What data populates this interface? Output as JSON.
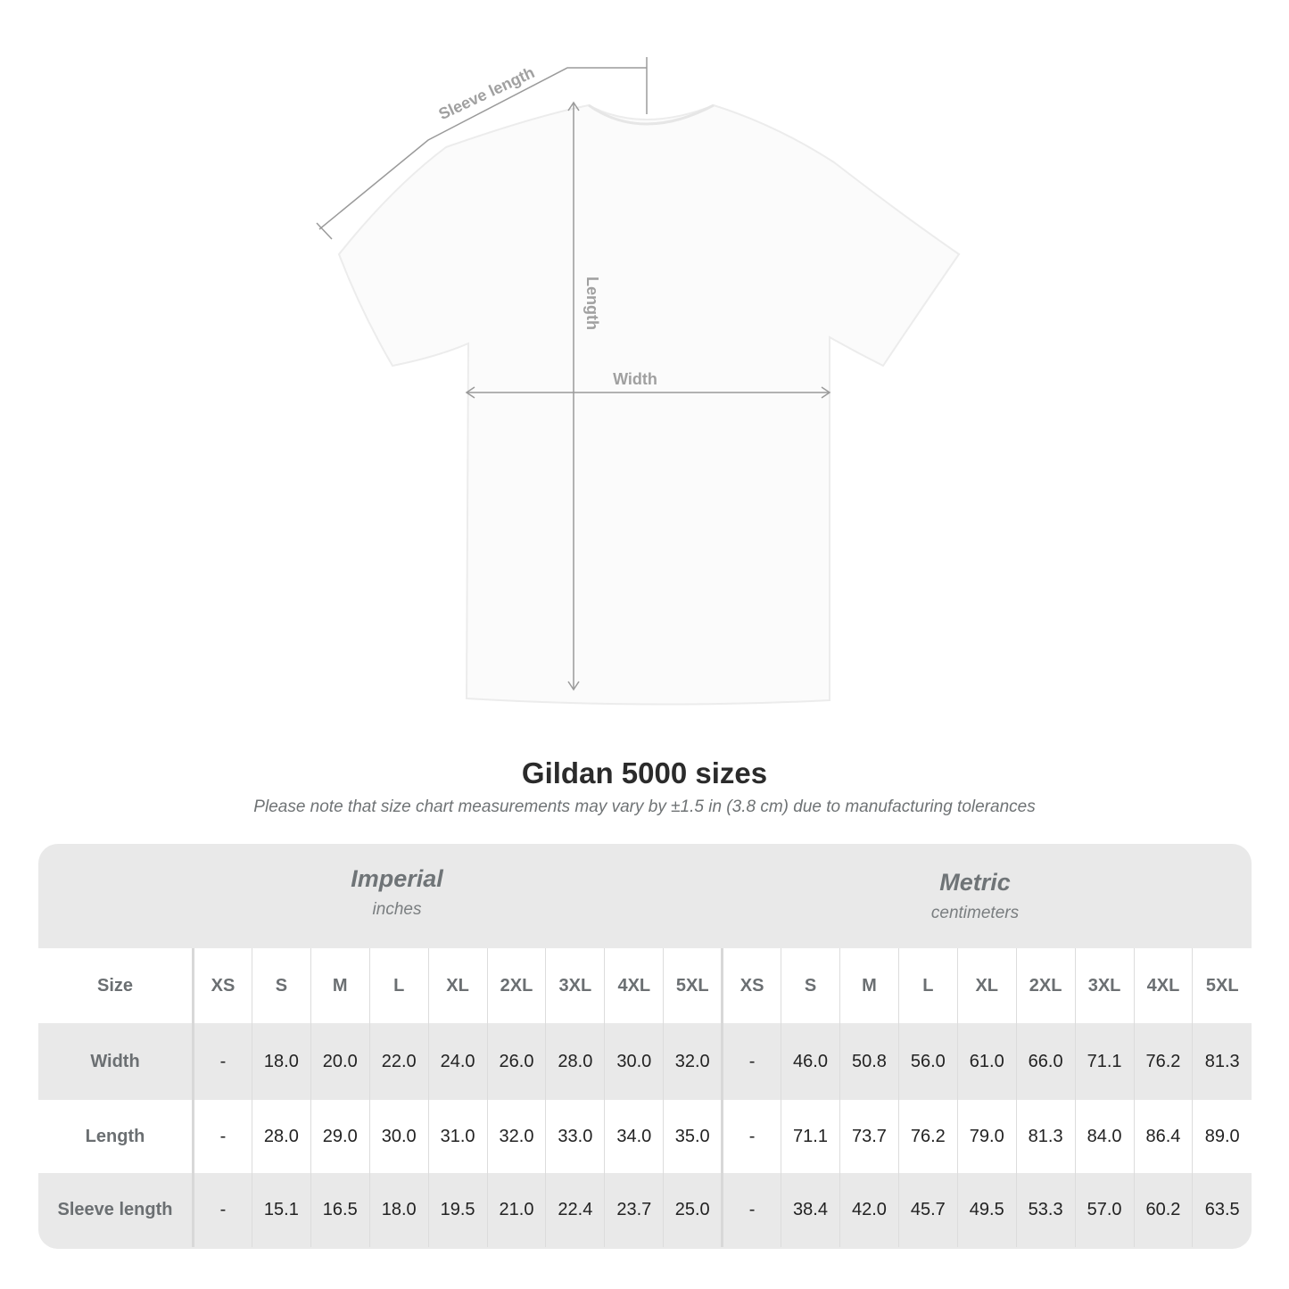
{
  "diagram": {
    "sleeve_label": "Sleeve length",
    "length_label": "Length",
    "width_label": "Width"
  },
  "title": "Gildan 5000 sizes",
  "note": "Please note that size chart measurements may vary by ±1.5 in (3.8 cm) due to manufacturing tolerances",
  "imperial": {
    "heading": "Imperial",
    "unit": "inches"
  },
  "metric": {
    "heading": "Metric",
    "unit": "centimeters"
  },
  "size_label": "Size",
  "sizes": [
    "XS",
    "S",
    "M",
    "L",
    "XL",
    "2XL",
    "3XL",
    "4XL",
    "5XL"
  ],
  "rows": [
    {
      "label": "Width",
      "imperial": [
        "-",
        "18.0",
        "20.0",
        "22.0",
        "24.0",
        "26.0",
        "28.0",
        "30.0",
        "32.0"
      ],
      "metric": [
        "-",
        "46.0",
        "50.8",
        "56.0",
        "61.0",
        "66.0",
        "71.1",
        "76.2",
        "81.3"
      ]
    },
    {
      "label": "Length",
      "imperial": [
        "-",
        "28.0",
        "29.0",
        "30.0",
        "31.0",
        "32.0",
        "33.0",
        "34.0",
        "35.0"
      ],
      "metric": [
        "-",
        "71.1",
        "73.7",
        "76.2",
        "79.0",
        "81.3",
        "84.0",
        "86.4",
        "89.0"
      ]
    },
    {
      "label": "Sleeve length",
      "imperial": [
        "-",
        "15.1",
        "16.5",
        "18.0",
        "19.5",
        "21.0",
        "22.4",
        "23.7",
        "25.0"
      ],
      "metric": [
        "-",
        "38.4",
        "42.0",
        "45.7",
        "49.5",
        "53.3",
        "57.0",
        "60.2",
        "63.5"
      ]
    }
  ],
  "colors": {
    "panel": "#e9e9e9",
    "label": "#6b6f72",
    "measure_line": "#9a9a9a"
  }
}
